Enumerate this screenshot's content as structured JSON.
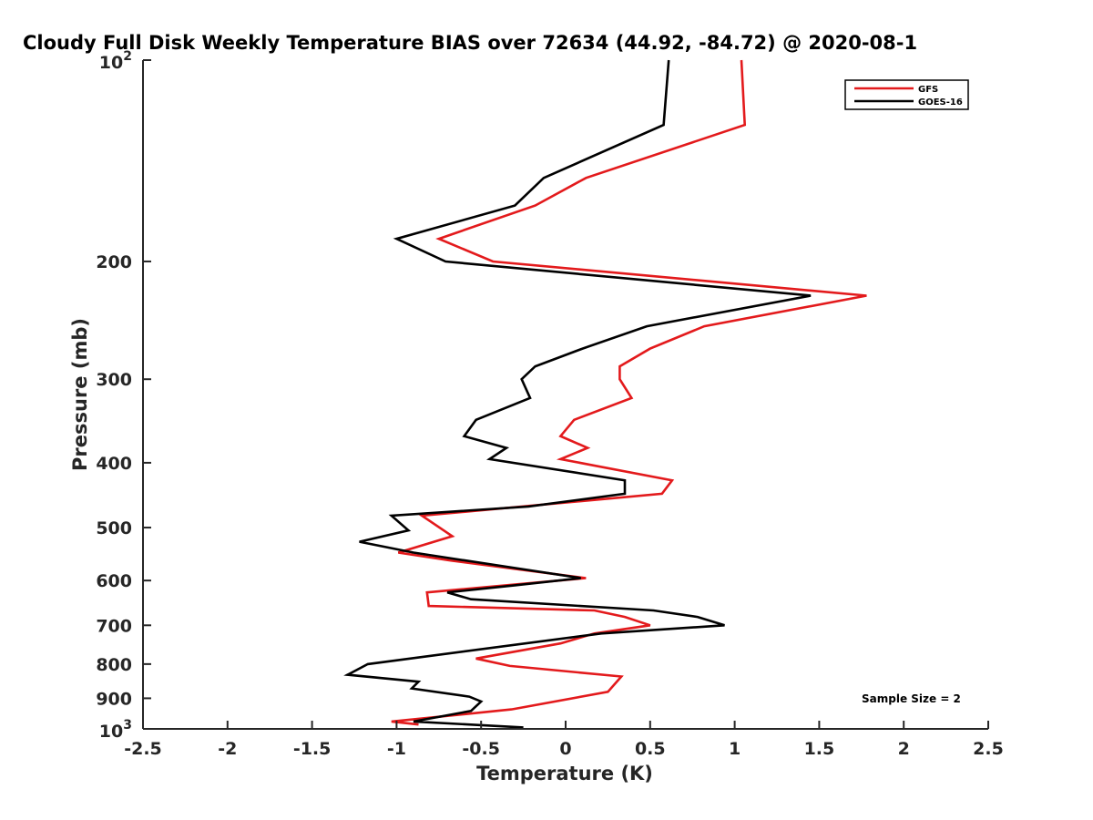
{
  "chart_data": {
    "type": "line",
    "title": "Cloudy Full Disk Weekly Temperature BIAS over 72634 (44.92, -84.72) @ 2020-08-1",
    "xlabel": "Temperature (K)",
    "ylabel": "Pressure (mb)",
    "xlim": [
      -2.5,
      2.5
    ],
    "ylim": [
      100,
      1000
    ],
    "y_scale": "log",
    "y_reversed": true,
    "x_ticks": [
      "-2.5",
      "-2",
      "-1.5",
      "-1",
      "-0.5",
      "0",
      "0.5",
      "1",
      "1.5",
      "2",
      "2.5"
    ],
    "y_ticks": [
      {
        "value": 100,
        "base": "10",
        "exp": "2"
      },
      {
        "value": 200,
        "label": "200"
      },
      {
        "value": 300,
        "label": "300"
      },
      {
        "value": 400,
        "label": "400"
      },
      {
        "value": 500,
        "label": "500"
      },
      {
        "value": 600,
        "label": "600"
      },
      {
        "value": 700,
        "label": "700"
      },
      {
        "value": 800,
        "label": "800"
      },
      {
        "value": 900,
        "label": "900"
      },
      {
        "value": 1000,
        "base": "10",
        "exp": "3"
      }
    ],
    "legend_position": "top-right",
    "annotation": "Sample Size = 2",
    "series": [
      {
        "name": "GFS",
        "color": "#e31a1c",
        "points": [
          [
            1.04,
            100
          ],
          [
            1.06,
            125
          ],
          [
            0.12,
            150
          ],
          [
            -0.18,
            165
          ],
          [
            -0.75,
            185
          ],
          [
            -0.43,
            200
          ],
          [
            1.78,
            225
          ],
          [
            0.82,
            250
          ],
          [
            0.5,
            270
          ],
          [
            0.32,
            287
          ],
          [
            0.32,
            300
          ],
          [
            0.39,
            320
          ],
          [
            0.05,
            345
          ],
          [
            -0.03,
            365
          ],
          [
            0.13,
            380
          ],
          [
            -0.03,
            395
          ],
          [
            0.63,
            425
          ],
          [
            0.57,
            445
          ],
          [
            -0.85,
            480
          ],
          [
            -0.67,
            515
          ],
          [
            -0.99,
            545
          ],
          [
            -0.68,
            560
          ],
          [
            0.12,
            595
          ],
          [
            -0.82,
            625
          ],
          [
            -0.81,
            655
          ],
          [
            0.17,
            665
          ],
          [
            0.35,
            680
          ],
          [
            0.5,
            700
          ],
          [
            0.17,
            720
          ],
          [
            -0.03,
            745
          ],
          [
            -0.53,
            785
          ],
          [
            -0.33,
            805
          ],
          [
            0.33,
            835
          ],
          [
            0.25,
            880
          ],
          [
            -0.32,
            935
          ],
          [
            -1.03,
            975
          ],
          [
            -0.87,
            985
          ]
        ]
      },
      {
        "name": "GOES-16",
        "color": "#000000",
        "points": [
          [
            0.61,
            100
          ],
          [
            0.58,
            125
          ],
          [
            -0.13,
            150
          ],
          [
            -0.3,
            165
          ],
          [
            -1.0,
            185
          ],
          [
            -0.71,
            200
          ],
          [
            1.45,
            225
          ],
          [
            0.48,
            250
          ],
          [
            0.1,
            270
          ],
          [
            -0.18,
            287
          ],
          [
            -0.26,
            300
          ],
          [
            -0.21,
            320
          ],
          [
            -0.53,
            345
          ],
          [
            -0.6,
            365
          ],
          [
            -0.35,
            380
          ],
          [
            -0.45,
            395
          ],
          [
            0.35,
            425
          ],
          [
            0.35,
            445
          ],
          [
            -0.22,
            465
          ],
          [
            -1.03,
            480
          ],
          [
            -0.93,
            505
          ],
          [
            -1.22,
            525
          ],
          [
            -0.9,
            545
          ],
          [
            0.09,
            595
          ],
          [
            -0.3,
            610
          ],
          [
            -0.7,
            625
          ],
          [
            -0.56,
            640
          ],
          [
            0.52,
            665
          ],
          [
            0.78,
            680
          ],
          [
            0.94,
            700
          ],
          [
            0.21,
            720
          ],
          [
            -1.17,
            800
          ],
          [
            -1.29,
            830
          ],
          [
            -0.87,
            850
          ],
          [
            -0.91,
            870
          ],
          [
            -0.57,
            895
          ],
          [
            -0.5,
            910
          ],
          [
            -0.56,
            940
          ],
          [
            -0.9,
            975
          ],
          [
            -0.25,
            995
          ]
        ]
      }
    ]
  }
}
